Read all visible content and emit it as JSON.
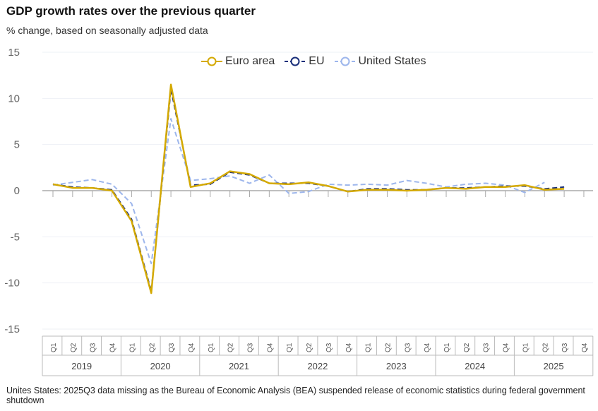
{
  "title": "GDP growth rates over the previous quarter",
  "subtitle": "% change, based on seasonally adjusted data",
  "note": "Unites States: 2025Q3 data missing as the Bureau of Economic Analysis (BEA) suspended release of economic statistics during federal government shutdown",
  "chart_data": {
    "type": "line",
    "ylim": [
      -15,
      15
    ],
    "yticks": [
      "15",
      "10",
      "5",
      "0",
      "-5",
      "-10",
      "-15"
    ],
    "grid": true,
    "legend_position": "top-center",
    "quarters": [
      "Q1",
      "Q2",
      "Q3",
      "Q4"
    ],
    "years": [
      "2019",
      "2020",
      "2021",
      "2022",
      "2023",
      "2024",
      "2025"
    ],
    "series": [
      {
        "name": "Euro area",
        "color": "#d4a900",
        "dash": false,
        "values": [
          0.7,
          0.3,
          0.3,
          0.0,
          -3.3,
          -11.1,
          11.5,
          0.4,
          0.8,
          2.1,
          1.8,
          0.8,
          0.7,
          0.9,
          0.5,
          -0.1,
          0.1,
          0.1,
          0.0,
          0.1,
          0.3,
          0.2,
          0.4,
          0.4,
          0.6,
          0.1,
          0.2,
          null
        ]
      },
      {
        "name": "EU",
        "color": "#1a2f7a",
        "dash": true,
        "values": [
          0.7,
          0.4,
          0.3,
          0.1,
          -3.1,
          -10.9,
          11.0,
          0.6,
          0.7,
          2.0,
          1.7,
          0.8,
          0.8,
          0.8,
          0.5,
          -0.1,
          0.2,
          0.2,
          0.1,
          0.1,
          0.3,
          0.3,
          0.4,
          0.5,
          0.5,
          0.2,
          0.4,
          null
        ]
      },
      {
        "name": "United States",
        "color": "#9db6ec",
        "dash": true,
        "values": [
          0.6,
          0.9,
          1.2,
          0.7,
          -1.4,
          -7.9,
          7.8,
          1.1,
          1.3,
          1.6,
          0.8,
          1.7,
          -0.3,
          -0.1,
          0.7,
          0.6,
          0.7,
          0.6,
          1.1,
          0.8,
          0.4,
          0.7,
          0.8,
          0.6,
          -0.2,
          0.9,
          null,
          null
        ]
      }
    ]
  }
}
